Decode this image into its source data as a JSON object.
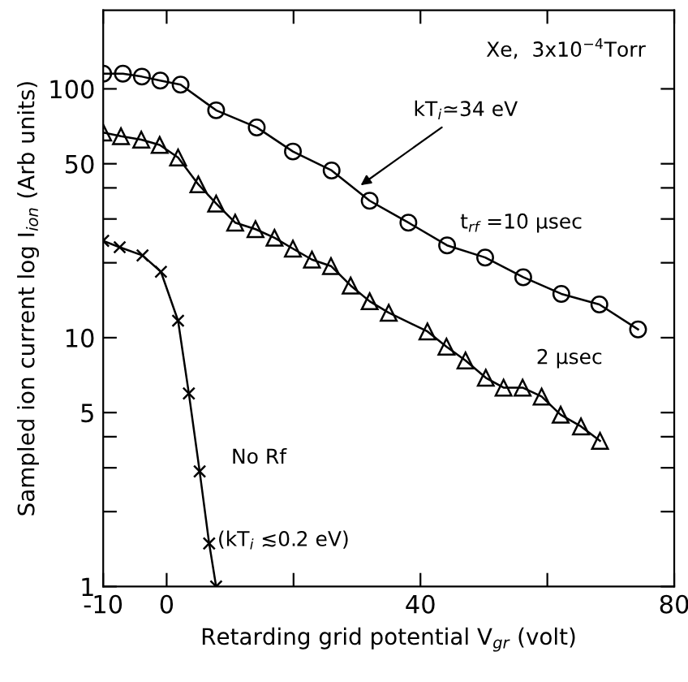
{
  "chart_data": {
    "type": "line",
    "xlabel": "Retarding grid potential V$_{gr}$ (volt)",
    "ylabel": "Sampled ion current log I$_{ion}$ (Arb units)",
    "log": "y",
    "grid": false,
    "legend": false,
    "line_style": "solid",
    "xlim": [
      -10,
      80
    ],
    "ylim": [
      1,
      207
    ],
    "xticks": [
      -10,
      0,
      {
        "value": 20,
        "label": null
      },
      40,
      {
        "value": 60,
        "label": null
      },
      80
    ],
    "yticks": [
      1,
      {
        "value": 2,
        "label": null
      },
      {
        "value": 3,
        "label": null
      },
      {
        "value": 4,
        "label": null
      },
      5,
      10,
      {
        "value": 20,
        "label": null
      },
      {
        "value": 30,
        "label": null
      },
      {
        "value": 40,
        "label": null
      },
      50,
      100
    ],
    "series": [
      {
        "name": "t$_{rf}$ =10 μsec",
        "color": "#000000",
        "marker": "circle",
        "x": [
          -10,
          -6.9,
          -3.9,
          -1.0,
          2.2,
          7.8,
          14.2,
          19.9,
          26.0,
          32.0,
          38.1,
          44.2,
          50.2,
          56.2,
          62.2,
          68.2,
          74.3
        ],
        "values": [
          115,
          115,
          112,
          108,
          104,
          82,
          70,
          56,
          47,
          35.5,
          29,
          23.5,
          21,
          17.5,
          15,
          13.6,
          10.8
        ]
      },
      {
        "name": "2 μsec",
        "color": "#000000",
        "marker": "triangle",
        "x": [
          -10,
          -7.2,
          -4.0,
          -1.1,
          1.8,
          5.0,
          7.8,
          10.8,
          14.0,
          17.0,
          19.9,
          22.9,
          25.9,
          29.0,
          32.0,
          35.0,
          41.1,
          44.1,
          47.1,
          50.3,
          53.1,
          56.1,
          59.1,
          62.1,
          65.3,
          68.3
        ],
        "values": [
          66.7,
          64.5,
          62.5,
          59.5,
          53,
          41.3,
          34.6,
          29,
          27.3,
          25.2,
          22.8,
          20.6,
          19.4,
          16.2,
          14.0,
          12.6,
          10.6,
          9.2,
          8.1,
          6.9,
          6.3,
          6.3,
          5.8,
          4.9,
          4.4,
          3.85
        ]
      },
      {
        "name": "No Rf",
        "color": "#000000",
        "marker": "cross",
        "x": [
          -10,
          -7.4,
          -3.8,
          -0.9,
          1.8,
          3.5,
          5.2,
          6.7,
          7.8
        ],
        "values": [
          24.5,
          23.1,
          21.4,
          18.4,
          11.7,
          5.97,
          2.9,
          1.49,
          1.0
        ]
      }
    ],
    "annotations": [
      "Xe,  3x10$^{−4}$Torr",
      {
        "text": "kT$_{i}$≃34 eV",
        "x": 30,
        "y": 40
      },
      "(kT$_{i}$ ≲0.2 eV)"
    ]
  }
}
